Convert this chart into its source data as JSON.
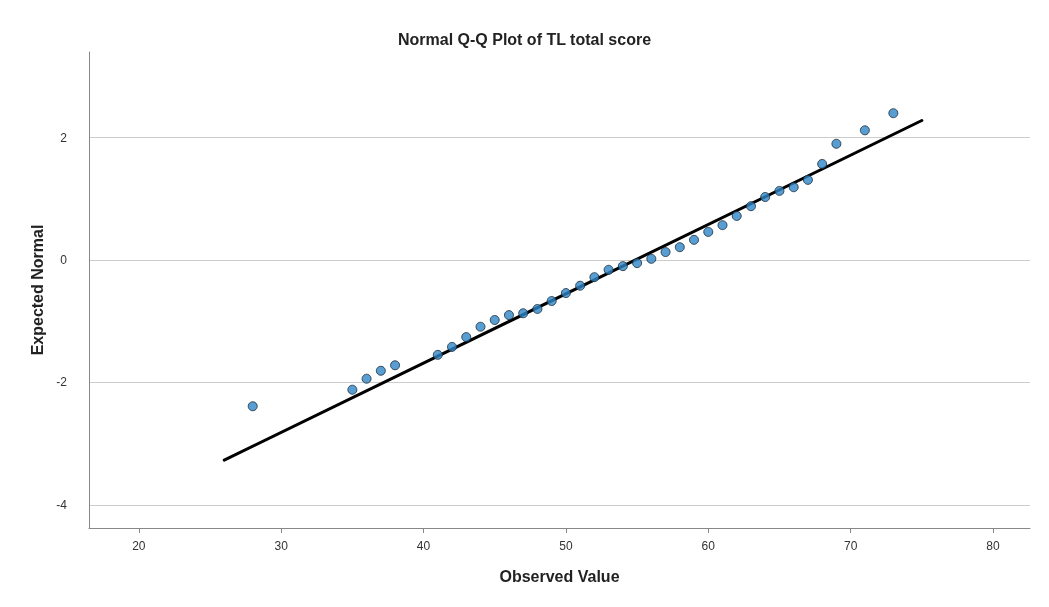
{
  "chart_data": {
    "type": "scatter",
    "title": "Normal Q-Q Plot of TL total score",
    "xlabel": "Observed Value",
    "ylabel": "Expected Normal",
    "xlim": [
      16.5,
      82.6
    ],
    "xticks": [
      20,
      30,
      40,
      50,
      60,
      70,
      80
    ],
    "ylim": [
      -4.38,
      3.4
    ],
    "yticks": [
      -4,
      -2,
      0,
      2
    ],
    "grid": "y",
    "marker": "circle",
    "series": [
      {
        "color": "#2e86c8",
        "x": [
          28,
          35,
          36,
          37,
          38,
          41,
          42,
          43,
          44,
          45,
          46,
          47,
          48,
          49,
          50,
          51,
          52,
          53,
          54,
          55,
          56,
          57,
          58,
          59,
          60,
          61,
          62,
          63,
          64,
          65,
          66,
          67,
          68,
          69,
          71,
          73
        ],
        "values": [
          -2.39,
          -2.12,
          -1.94,
          -1.81,
          -1.72,
          -1.55,
          -1.42,
          -1.26,
          -1.09,
          -0.98,
          -0.9,
          -0.87,
          -0.8,
          -0.67,
          -0.54,
          -0.42,
          -0.28,
          -0.16,
          -0.1,
          -0.05,
          0.02,
          0.13,
          0.21,
          0.33,
          0.46,
          0.57,
          0.72,
          0.88,
          1.03,
          1.13,
          1.19,
          1.31,
          1.57,
          1.9,
          2.12,
          2.4
        ]
      },
      {
        "type": "line",
        "color": "#000000",
        "line_style": "solid",
        "marker": "none",
        "x": [
          26,
          75
        ],
        "values": [
          -3.27,
          2.28
        ]
      }
    ]
  }
}
